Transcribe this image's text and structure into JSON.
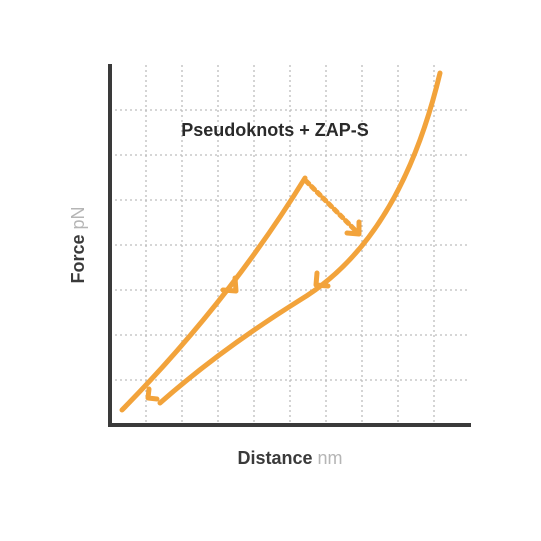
{
  "title": "Pseudoknots + ZAP-S",
  "y_axis": {
    "label": "Force",
    "unit": "pN"
  },
  "x_axis": {
    "label": "Distance",
    "unit": "nm"
  }
}
